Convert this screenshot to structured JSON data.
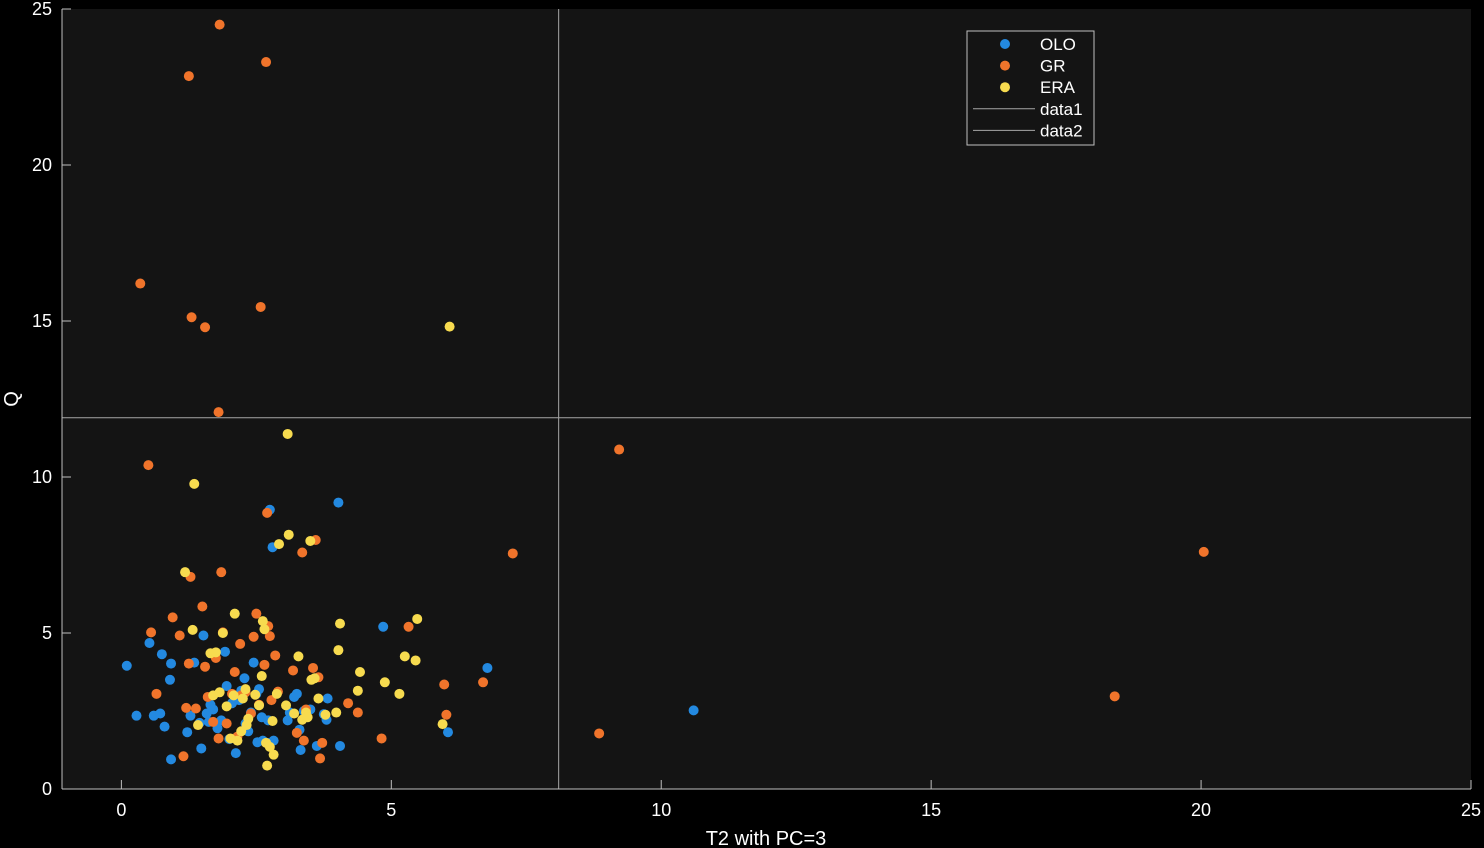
{
  "chart_data": {
    "type": "scatter",
    "title": "",
    "xlabel": "T2 with PC=3",
    "ylabel": "Q",
    "xlim": [
      -1.1,
      25
    ],
    "ylim": [
      0,
      25
    ],
    "xticks": [
      "0",
      "5",
      "10",
      "15",
      "20",
      "25"
    ],
    "yticks": [
      "0",
      "5",
      "10",
      "15",
      "20",
      "25"
    ],
    "xtick_values": [
      0,
      5,
      10,
      15,
      20,
      25
    ],
    "ytick_values": [
      0,
      5,
      10,
      15,
      20,
      25
    ],
    "grid": false,
    "legend_position": "top-right",
    "background": "#141414",
    "axis_color": "#bfbfbf",
    "text_color": "#ffffff",
    "reference_lines": [
      {
        "name": "data1",
        "orientation": "horizontal",
        "value": 11.9,
        "color": "#a6a6a6"
      },
      {
        "name": "data2",
        "orientation": "vertical",
        "value": 8.1,
        "color": "#a6a6a6"
      }
    ],
    "series": [
      {
        "name": "OLO",
        "color": "#2389e0",
        "points": [
          [
            0.1,
            3.95
          ],
          [
            0.28,
            2.35
          ],
          [
            0.52,
            4.68
          ],
          [
            0.6,
            2.35
          ],
          [
            0.72,
            2.42
          ],
          [
            0.75,
            4.32
          ],
          [
            0.8,
            2.0
          ],
          [
            0.9,
            3.5
          ],
          [
            0.92,
            4.02
          ],
          [
            0.92,
            0.95
          ],
          [
            1.22,
            1.82
          ],
          [
            1.28,
            2.35
          ],
          [
            1.35,
            4.05
          ],
          [
            1.45,
            2.12
          ],
          [
            1.48,
            1.3
          ],
          [
            1.52,
            4.92
          ],
          [
            1.58,
            2.42
          ],
          [
            1.62,
            2.15
          ],
          [
            1.65,
            2.7
          ],
          [
            1.7,
            2.55
          ],
          [
            1.78,
            1.95
          ],
          [
            1.85,
            2.2
          ],
          [
            1.92,
            4.4
          ],
          [
            1.95,
            3.3
          ],
          [
            2.0,
            1.6
          ],
          [
            2.05,
            2.75
          ],
          [
            2.12,
            1.15
          ],
          [
            2.18,
            2.85
          ],
          [
            2.22,
            3.15
          ],
          [
            2.28,
            3.55
          ],
          [
            2.3,
            2.1
          ],
          [
            2.35,
            1.85
          ],
          [
            2.4,
            2.45
          ],
          [
            2.45,
            4.05
          ],
          [
            2.5,
            3.05
          ],
          [
            2.52,
            1.5
          ],
          [
            2.55,
            3.2
          ],
          [
            2.6,
            2.3
          ],
          [
            2.62,
            1.55
          ],
          [
            2.7,
            1.48
          ],
          [
            2.72,
            2.2
          ],
          [
            2.75,
            8.95
          ],
          [
            2.8,
            7.75
          ],
          [
            2.82,
            1.55
          ],
          [
            3.08,
            2.2
          ],
          [
            3.12,
            2.45
          ],
          [
            3.2,
            2.95
          ],
          [
            3.25,
            3.05
          ],
          [
            3.3,
            1.9
          ],
          [
            3.32,
            1.25
          ],
          [
            3.38,
            2.5
          ],
          [
            3.5,
            2.55
          ],
          [
            3.62,
            1.38
          ],
          [
            3.75,
            2.4
          ],
          [
            3.8,
            2.22
          ],
          [
            3.82,
            2.9
          ],
          [
            4.02,
            9.18
          ],
          [
            4.05,
            1.38
          ],
          [
            4.85,
            5.2
          ],
          [
            6.05,
            1.82
          ],
          [
            6.78,
            3.88
          ],
          [
            10.6,
            2.52
          ]
        ]
      },
      {
        "name": "GR",
        "color": "#f0742b",
        "points": [
          [
            0.35,
            16.2
          ],
          [
            0.5,
            10.38
          ],
          [
            0.55,
            5.02
          ],
          [
            0.65,
            3.05
          ],
          [
            0.95,
            5.5
          ],
          [
            1.08,
            4.92
          ],
          [
            1.15,
            1.05
          ],
          [
            1.2,
            2.6
          ],
          [
            1.25,
            4.02
          ],
          [
            1.25,
            22.85
          ],
          [
            1.28,
            6.8
          ],
          [
            1.3,
            15.12
          ],
          [
            1.38,
            2.58
          ],
          [
            1.5,
            5.85
          ],
          [
            1.55,
            14.8
          ],
          [
            1.55,
            3.92
          ],
          [
            1.6,
            2.95
          ],
          [
            1.7,
            2.15
          ],
          [
            1.75,
            4.2
          ],
          [
            1.8,
            12.08
          ],
          [
            1.8,
            1.62
          ],
          [
            1.82,
            24.5
          ],
          [
            1.85,
            6.95
          ],
          [
            1.88,
            5.02
          ],
          [
            1.95,
            2.1
          ],
          [
            2.05,
            3.05
          ],
          [
            2.1,
            3.75
          ],
          [
            2.15,
            1.68
          ],
          [
            2.2,
            4.65
          ],
          [
            2.22,
            3.0
          ],
          [
            2.3,
            3.1
          ],
          [
            2.4,
            2.42
          ],
          [
            2.45,
            4.88
          ],
          [
            2.5,
            5.62
          ],
          [
            2.55,
            2.7
          ],
          [
            2.58,
            15.45
          ],
          [
            2.65,
            3.98
          ],
          [
            2.68,
            23.3
          ],
          [
            2.7,
            8.85
          ],
          [
            2.72,
            5.22
          ],
          [
            2.75,
            4.9
          ],
          [
            2.78,
            2.85
          ],
          [
            2.85,
            4.28
          ],
          [
            2.9,
            3.12
          ],
          [
            3.18,
            3.8
          ],
          [
            3.25,
            1.8
          ],
          [
            3.35,
            7.58
          ],
          [
            3.38,
            1.55
          ],
          [
            3.42,
            2.55
          ],
          [
            3.55,
            3.88
          ],
          [
            3.6,
            7.98
          ],
          [
            3.65,
            3.58
          ],
          [
            3.68,
            0.98
          ],
          [
            3.72,
            1.48
          ],
          [
            4.2,
            2.75
          ],
          [
            4.38,
            2.45
          ],
          [
            4.82,
            1.62
          ],
          [
            5.32,
            5.2
          ],
          [
            5.98,
            3.35
          ],
          [
            6.02,
            2.38
          ],
          [
            6.7,
            3.42
          ],
          [
            7.25,
            7.55
          ],
          [
            8.85,
            1.78
          ],
          [
            9.22,
            10.88
          ],
          [
            18.4,
            2.97
          ],
          [
            20.05,
            7.6
          ]
        ]
      },
      {
        "name": "ERA",
        "color": "#f7db4f",
        "points": [
          [
            1.18,
            6.95
          ],
          [
            1.32,
            5.1
          ],
          [
            1.35,
            9.78
          ],
          [
            1.42,
            2.05
          ],
          [
            1.65,
            4.35
          ],
          [
            1.7,
            3.0
          ],
          [
            1.75,
            4.38
          ],
          [
            1.82,
            3.1
          ],
          [
            1.88,
            5.0
          ],
          [
            1.95,
            2.65
          ],
          [
            2.02,
            1.62
          ],
          [
            2.08,
            3.0
          ],
          [
            2.1,
            5.62
          ],
          [
            2.15,
            1.55
          ],
          [
            2.22,
            1.85
          ],
          [
            2.25,
            2.9
          ],
          [
            2.3,
            3.2
          ],
          [
            2.32,
            2.05
          ],
          [
            2.35,
            2.25
          ],
          [
            2.48,
            3.02
          ],
          [
            2.55,
            2.68
          ],
          [
            2.6,
            3.62
          ],
          [
            2.62,
            5.38
          ],
          [
            2.65,
            5.12
          ],
          [
            2.68,
            1.48
          ],
          [
            2.7,
            0.75
          ],
          [
            2.75,
            1.35
          ],
          [
            2.8,
            2.18
          ],
          [
            2.82,
            1.1
          ],
          [
            2.88,
            3.05
          ],
          [
            2.92,
            7.85
          ],
          [
            3.05,
            2.68
          ],
          [
            3.08,
            11.38
          ],
          [
            3.1,
            8.15
          ],
          [
            3.2,
            2.42
          ],
          [
            3.28,
            4.25
          ],
          [
            3.35,
            2.22
          ],
          [
            3.42,
            2.45
          ],
          [
            3.45,
            2.3
          ],
          [
            3.5,
            7.95
          ],
          [
            3.52,
            3.5
          ],
          [
            3.58,
            3.55
          ],
          [
            3.65,
            2.9
          ],
          [
            3.78,
            2.38
          ],
          [
            3.98,
            2.45
          ],
          [
            4.02,
            4.45
          ],
          [
            4.05,
            5.3
          ],
          [
            4.38,
            3.15
          ],
          [
            4.42,
            3.75
          ],
          [
            4.88,
            3.42
          ],
          [
            5.15,
            3.05
          ],
          [
            5.25,
            4.25
          ],
          [
            5.45,
            4.12
          ],
          [
            5.48,
            5.45
          ],
          [
            5.95,
            2.08
          ],
          [
            6.08,
            14.82
          ]
        ]
      }
    ]
  }
}
